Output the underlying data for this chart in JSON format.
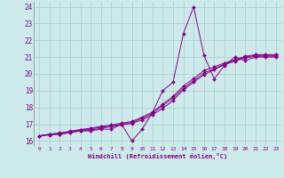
{
  "background_color": "#cceaea",
  "grid_color": "#aacccc",
  "line_color": "#880088",
  "xlabel": "Windchill (Refroidissement éolien,°C)",
  "xlim": [
    -0.5,
    23.5
  ],
  "ylim": [
    15.7,
    24.3
  ],
  "yticks": [
    16,
    17,
    18,
    19,
    20,
    21,
    22,
    23,
    24
  ],
  "xticks": [
    0,
    1,
    2,
    3,
    4,
    5,
    6,
    7,
    8,
    9,
    10,
    11,
    12,
    13,
    14,
    15,
    16,
    17,
    18,
    19,
    20,
    21,
    22,
    23
  ],
  "series": [
    {
      "x": [
        0,
        1,
        2,
        3,
        4,
        5,
        6,
        7,
        8,
        9,
        10,
        11,
        12,
        13,
        14,
        15,
        16,
        17,
        18,
        19,
        20,
        21,
        22,
        23
      ],
      "y": [
        16.3,
        16.4,
        16.4,
        16.5,
        16.6,
        16.6,
        16.7,
        16.7,
        17.0,
        16.0,
        16.7,
        17.7,
        19.0,
        19.5,
        22.4,
        24.0,
        21.1,
        19.7,
        20.5,
        21.0,
        20.8,
        21.0,
        21.0,
        21.0
      ],
      "marker": true
    },
    {
      "x": [
        0,
        1,
        2,
        3,
        4,
        5,
        6,
        7,
        8,
        9,
        10,
        11,
        12,
        13,
        14,
        15,
        16,
        17,
        18,
        19,
        20,
        21,
        22,
        23
      ],
      "y": [
        16.3,
        16.35,
        16.4,
        16.5,
        16.6,
        16.65,
        16.75,
        16.85,
        16.95,
        17.05,
        17.25,
        17.55,
        17.95,
        18.4,
        19.05,
        19.5,
        19.95,
        20.25,
        20.55,
        20.75,
        20.95,
        21.05,
        21.05,
        21.05
      ],
      "marker": true
    },
    {
      "x": [
        0,
        1,
        2,
        3,
        4,
        5,
        6,
        7,
        8,
        9,
        10,
        11,
        12,
        13,
        14,
        15,
        16,
        17,
        18,
        19,
        20,
        21,
        22,
        23
      ],
      "y": [
        16.3,
        16.38,
        16.45,
        16.55,
        16.65,
        16.72,
        16.82,
        16.9,
        17.0,
        17.1,
        17.35,
        17.65,
        18.1,
        18.55,
        19.15,
        19.6,
        20.05,
        20.3,
        20.6,
        20.8,
        21.0,
        21.1,
        21.1,
        21.1
      ],
      "marker": true
    },
    {
      "x": [
        0,
        1,
        2,
        3,
        4,
        5,
        6,
        7,
        8,
        9,
        10,
        11,
        12,
        13,
        14,
        15,
        16,
        17,
        18,
        19,
        20,
        21,
        22,
        23
      ],
      "y": [
        16.3,
        16.4,
        16.48,
        16.58,
        16.68,
        16.76,
        16.87,
        16.95,
        17.06,
        17.16,
        17.42,
        17.72,
        18.2,
        18.65,
        19.28,
        19.72,
        20.2,
        20.42,
        20.65,
        20.85,
        21.05,
        21.15,
        21.15,
        21.15
      ],
      "marker": true
    }
  ]
}
